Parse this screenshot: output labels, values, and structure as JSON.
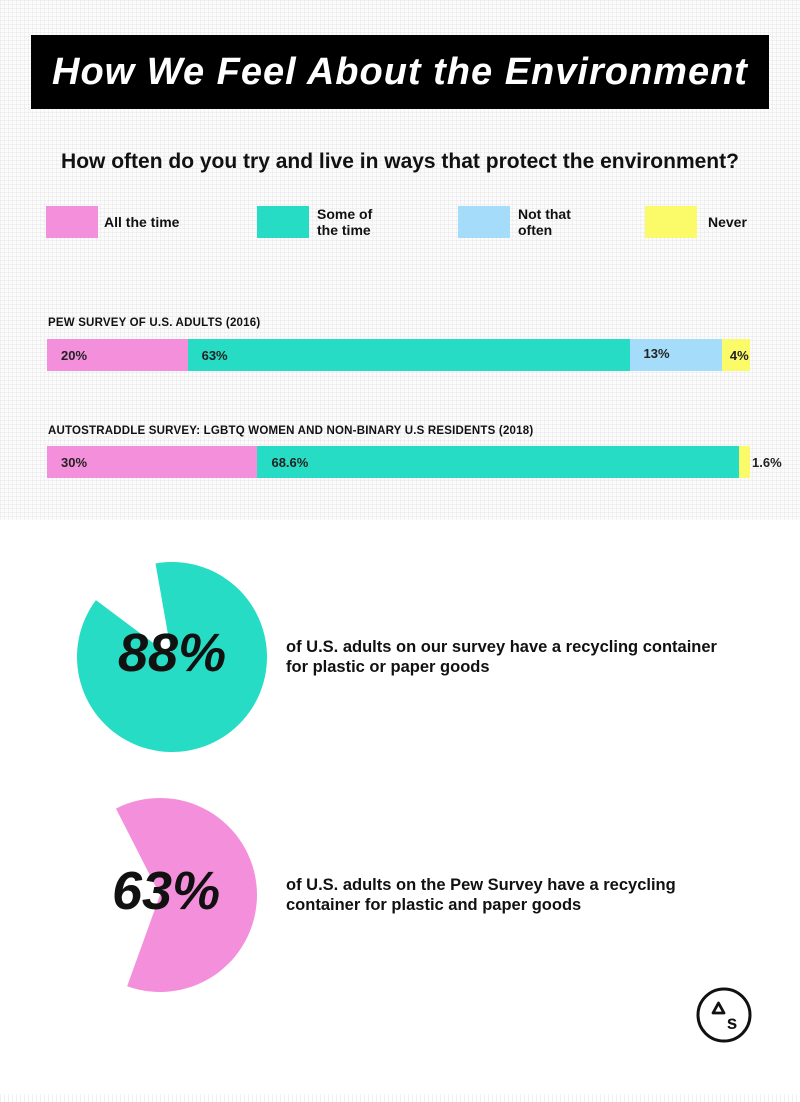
{
  "title": "How We Feel About the Environment",
  "question": "How often do you try and live in ways that protect the environment?",
  "colors": {
    "all_the_time": "#f48fdc",
    "some_of_the_time": "#26dcc4",
    "not_that_often": "#a4dcfa",
    "never": "#fbfb6a"
  },
  "legend": [
    {
      "label": "All the time",
      "color": "#f48fdc"
    },
    {
      "label": "Some of\nthe time",
      "color": "#26dcc4"
    },
    {
      "label": "Not that\noften",
      "color": "#a4dcfa"
    },
    {
      "label": "Never",
      "color": "#fbfb6a"
    }
  ],
  "chart_data": [
    {
      "type": "bar",
      "stacked": true,
      "orientation": "horizontal",
      "categories": [
        "All the time",
        "Some of the time",
        "Not that often",
        "Never"
      ],
      "bars": [
        {
          "name": "PEW SURVEY OF U.S. ADULTS (2016)",
          "values": [
            20,
            63,
            13,
            4
          ],
          "labels": [
            "20%",
            "63%",
            "13%",
            "4%"
          ]
        },
        {
          "name": "AUTOSTRADDLE SURVEY: LGBTQ WOMEN AND NON-BINARY U.S RESIDENTS (2018)",
          "values": [
            30,
            68.6,
            0,
            1.6
          ],
          "labels": [
            "30%",
            "68.6%",
            "",
            "1.6%"
          ]
        }
      ],
      "unit": "%"
    },
    {
      "type": "pie",
      "values": [
        88,
        12
      ],
      "value_label": "88%",
      "color": "#26dcc4",
      "text": "of U.S. adults on our survey have a recycling container for plastic or paper goods"
    },
    {
      "type": "pie",
      "values": [
        63,
        37
      ],
      "value_label": "63%",
      "color": "#f48fdc",
      "text": "of U.S. adults on the Pew Survey have a recycling container for plastic and paper goods"
    }
  ],
  "logo": {
    "letters": "AS",
    "icon": "autostraddle-logo-icon"
  }
}
